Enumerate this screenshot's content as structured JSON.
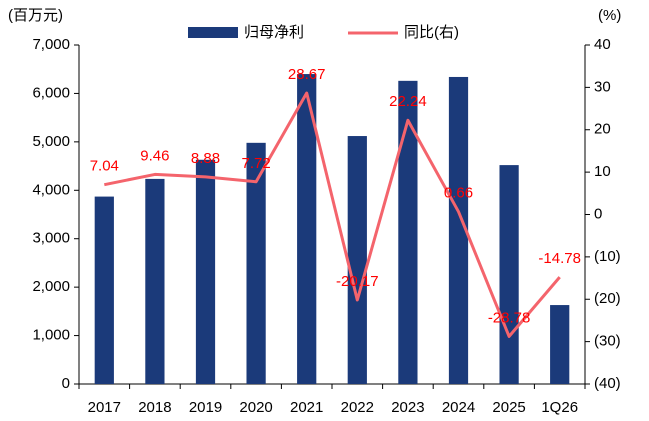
{
  "chart_data": {
    "type": "bar_line",
    "y_unit": "(百万元)",
    "y2_unit": "(%)",
    "categories": [
      "2017",
      "2018",
      "2019",
      "2020",
      "2021",
      "2022",
      "2023",
      "2024",
      "2025",
      "1Q26"
    ],
    "series": [
      {
        "name": "归母净利",
        "color": "#1b3a7a",
        "type": "bar",
        "values": [
          3870,
          4235,
          4630,
          4980,
          6400,
          5120,
          6260,
          6340,
          4520,
          1630
        ]
      },
      {
        "name": "同比(右)",
        "color": "#f4646c",
        "type": "line",
        "axis": "y2",
        "values": [
          7.04,
          9.46,
          8.88,
          7.72,
          28.67,
          -20.17,
          22.24,
          0.66,
          -28.78,
          -14.78
        ],
        "label_color": "#ff0000"
      }
    ],
    "ylim": [
      0,
      7000
    ],
    "yticks": [
      0,
      {
        "value": 1000,
        "label": "1,000"
      },
      {
        "value": 2000,
        "label": "2,000"
      },
      {
        "value": 3000,
        "label": "3,000"
      },
      {
        "value": 4000,
        "label": "4,000"
      },
      {
        "value": 5000,
        "label": "5,000"
      },
      {
        "value": 6000,
        "label": "6,000"
      },
      {
        "value": 7000,
        "label": "7,000"
      }
    ],
    "y2lim": [
      -40,
      40
    ],
    "y2ticks": [
      {
        "value": -40,
        "label": "(40)"
      },
      {
        "value": -30,
        "label": "(30)"
      },
      {
        "value": -20,
        "label": "(20)"
      },
      {
        "value": -10,
        "label": "(10)"
      },
      0,
      10,
      20,
      30,
      40
    ],
    "grid": false,
    "legend": "top"
  }
}
